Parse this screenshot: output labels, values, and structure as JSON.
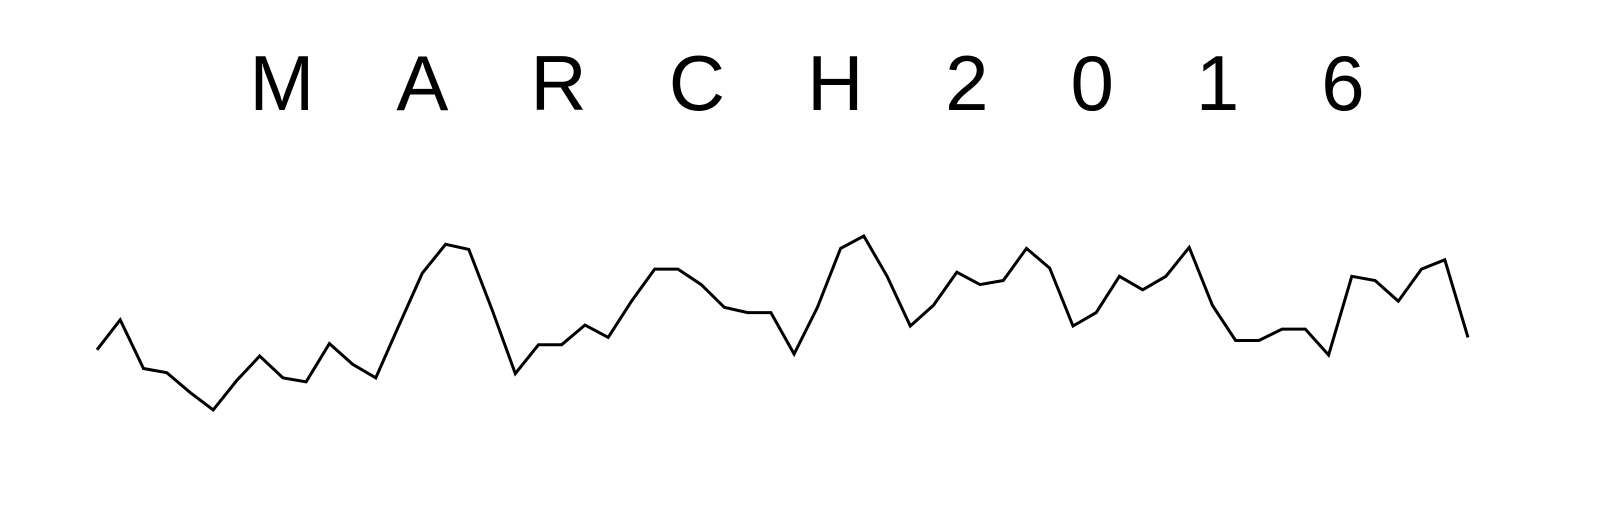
{
  "chart_data": {
    "type": "line",
    "title": "MARCH 2016",
    "color": "#000000",
    "values": [
      62,
      91,
      44,
      40,
      21,
      4,
      32,
      56,
      35,
      31,
      68,
      48,
      35,
      86,
      136,
      164,
      159,
      101,
      39,
      67,
      67,
      86,
      74,
      109,
      140,
      140,
      125,
      103,
      98,
      98,
      58,
      103,
      160,
      172,
      133,
      85,
      105,
      137,
      125,
      129,
      160,
      141,
      85,
      98,
      133,
      120,
      133,
      161,
      105,
      71,
      71,
      82,
      82,
      57,
      133,
      129,
      109,
      140,
      149,
      74
    ],
    "ylim": [
      0,
      200
    ]
  }
}
